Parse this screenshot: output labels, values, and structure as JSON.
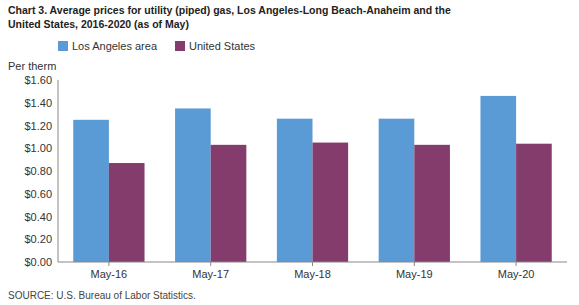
{
  "chart_data": {
    "type": "bar",
    "title": [
      "Chart 3. Average prices for utility (piped) gas, Los Angeles-Long Beach-Anaheim and the",
      "United States, 2016-2020  (as of May)"
    ],
    "ylabel": "Per therm",
    "source": "SOURCE: U.S. Bureau of Labor Statistics.",
    "categories": [
      "May-16",
      "May-17",
      "May-18",
      "May-19",
      "May-20"
    ],
    "series": [
      {
        "name": "Los Angeles area",
        "color": "#5B9BD5",
        "values": [
          1.25,
          1.35,
          1.26,
          1.26,
          1.46
        ]
      },
      {
        "name": "United States",
        "color": "#833C6B",
        "values": [
          0.87,
          1.03,
          1.05,
          1.03,
          1.04
        ]
      }
    ],
    "ylim": [
      0,
      1.6
    ],
    "yticks": [
      {
        "value": 0,
        "label": "$0.00"
      },
      {
        "value": 0.2,
        "label": "$0.20"
      },
      {
        "value": 0.4,
        "label": "$0.40"
      },
      {
        "value": 0.6,
        "label": "$0.60"
      },
      {
        "value": 0.8,
        "label": "$0.80"
      },
      {
        "value": 1,
        "label": "$1.00"
      },
      {
        "value": 1.2,
        "label": "$1.20"
      },
      {
        "value": 1.4,
        "label": "$1.40"
      },
      {
        "value": 1.6,
        "label": "$1.60"
      }
    ],
    "grid": false,
    "legend": "top"
  }
}
